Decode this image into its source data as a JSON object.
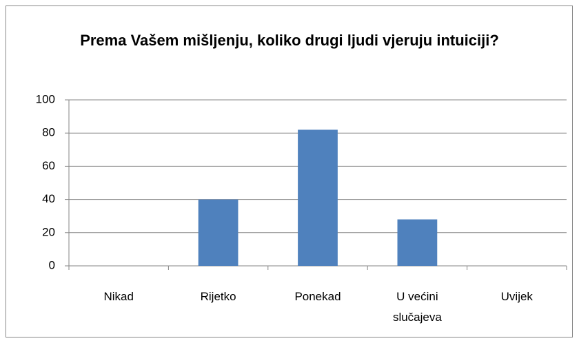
{
  "chart_data": {
    "type": "bar",
    "title": "Prema Vašem mišljenju, koliko drugi ljudi vjeruju intuiciji?",
    "categories": [
      "Nikad",
      "Rijetko",
      "Ponekad",
      "U većini slučajeva",
      "Uvijek"
    ],
    "values": [
      0,
      40,
      82,
      28,
      0
    ],
    "color": "#4f81bd",
    "ylim": [
      0,
      100
    ],
    "yticks": [
      0,
      20,
      40,
      60,
      80,
      100
    ],
    "grid": true
  }
}
